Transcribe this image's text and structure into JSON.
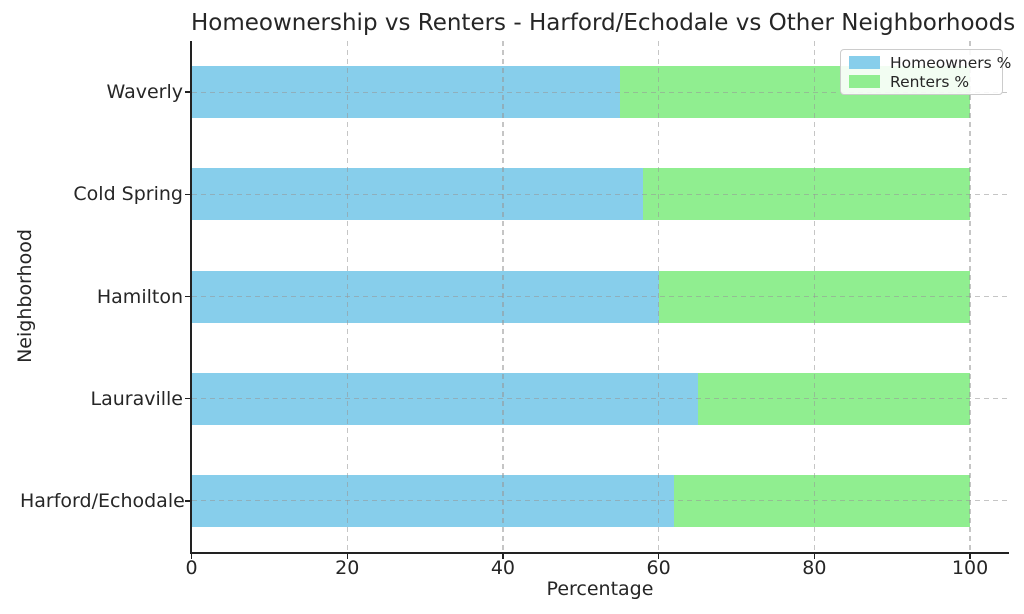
{
  "chart_data": {
    "type": "bar",
    "orientation": "horizontal",
    "stacked": true,
    "title": "Homeownership vs Renters - Harford/Echodale vs Other Neighborhoods",
    "xlabel": "Percentage",
    "ylabel": "Neighborhood",
    "categories": [
      "Waverly",
      "Cold Spring",
      "Hamilton",
      "Lauraville",
      "Harford/Echodale"
    ],
    "series": [
      {
        "name": "Homeowners %",
        "color": "#87CEEB",
        "values": [
          55,
          58,
          60,
          65,
          62
        ]
      },
      {
        "name": "Renters %",
        "color": "#90EE90",
        "values": [
          45,
          42,
          40,
          35,
          38
        ]
      }
    ],
    "xlim": [
      0,
      105
    ],
    "xticks": [
      0,
      20,
      40,
      60,
      80,
      100
    ],
    "grid": true,
    "grid_style": "dashed",
    "legend_position": "upper right",
    "background_color": "#ffffff",
    "text_color": "#262626"
  }
}
